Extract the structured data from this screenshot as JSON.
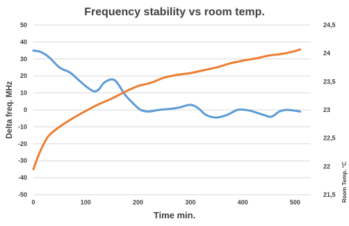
{
  "chart_data": {
    "type": "line",
    "title": "Frequency stability vs room temp.",
    "xlabel": "Time min.",
    "ylabel": "Delta freq. MHz",
    "y2label": "Room Temp. °C",
    "xlim": [
      0,
      530
    ],
    "ylim": [
      -50,
      50
    ],
    "y2lim": [
      21.5,
      24.5
    ],
    "x_ticks": [
      "0",
      "100",
      "200",
      "300",
      "400",
      "500"
    ],
    "y_ticks": [
      "50",
      "40",
      "30",
      "20",
      "10",
      "0",
      "-10",
      "-20",
      "-30",
      "-40",
      "-50"
    ],
    "y2_ticks": [
      "24,5",
      "24",
      "23,5",
      "23",
      "22,5",
      "22",
      "21,5"
    ],
    "grid": "horizontal",
    "series": [
      {
        "axis": "left",
        "color": "#5b9bd5",
        "x": [
          0,
          15,
          30,
          50,
          70,
          85,
          100,
          115,
          125,
          135,
          150,
          160,
          175,
          190,
          205,
          220,
          240,
          260,
          280,
          300,
          315,
          330,
          350,
          370,
          390,
          405,
          420,
          440,
          455,
          470,
          485,
          500,
          510
        ],
        "y": [
          35,
          34,
          31,
          25,
          22,
          18,
          14,
          11,
          12,
          16,
          18,
          16,
          9,
          4,
          0,
          -1,
          0,
          0.5,
          1.5,
          3,
          1,
          -3,
          -4.5,
          -3,
          0,
          0,
          -1,
          -3,
          -4,
          -1,
          0,
          -0.5,
          -1
        ]
      },
      {
        "axis": "right",
        "color": "#ed7d31",
        "x": [
          0,
          10,
          20,
          30,
          50,
          75,
          100,
          125,
          150,
          175,
          200,
          225,
          250,
          275,
          300,
          325,
          350,
          375,
          400,
          425,
          450,
          475,
          500,
          510
        ],
        "y": [
          21.95,
          22.2,
          22.4,
          22.55,
          22.7,
          22.85,
          22.98,
          23.1,
          23.2,
          23.32,
          23.42,
          23.48,
          23.57,
          23.62,
          23.65,
          23.7,
          23.75,
          23.82,
          23.87,
          23.91,
          23.96,
          23.99,
          24.04,
          24.07
        ]
      }
    ]
  }
}
